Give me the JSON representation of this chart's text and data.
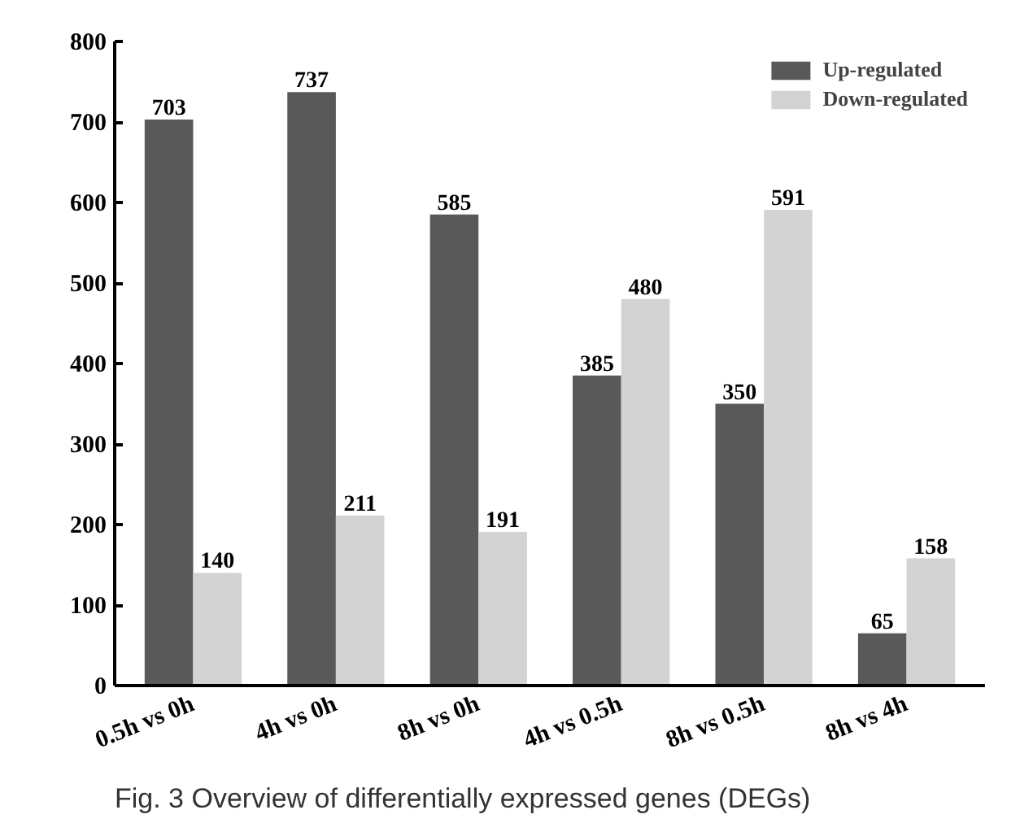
{
  "chart_data": {
    "type": "bar",
    "categories": [
      "0.5h vs 0h",
      "4h vs 0h",
      "8h vs 0h",
      "4h vs 0.5h",
      "8h vs 0.5h",
      "8h vs 4h"
    ],
    "series": [
      {
        "name": "Up-regulated",
        "color": "#595959",
        "values": [
          703,
          737,
          585,
          385,
          350,
          65
        ]
      },
      {
        "name": "Down-regulated",
        "color": "#d3d3d3",
        "values": [
          140,
          211,
          191,
          480,
          591,
          158
        ]
      }
    ],
    "ylim": [
      0,
      800
    ],
    "yticks": [
      0,
      100,
      200,
      300,
      400,
      500,
      600,
      700,
      800
    ],
    "grid": false,
    "legend": "top right",
    "data_labels": true,
    "annotations": [
      "Fig. 3 Overview of differentially expressed genes (DEGs)"
    ]
  }
}
